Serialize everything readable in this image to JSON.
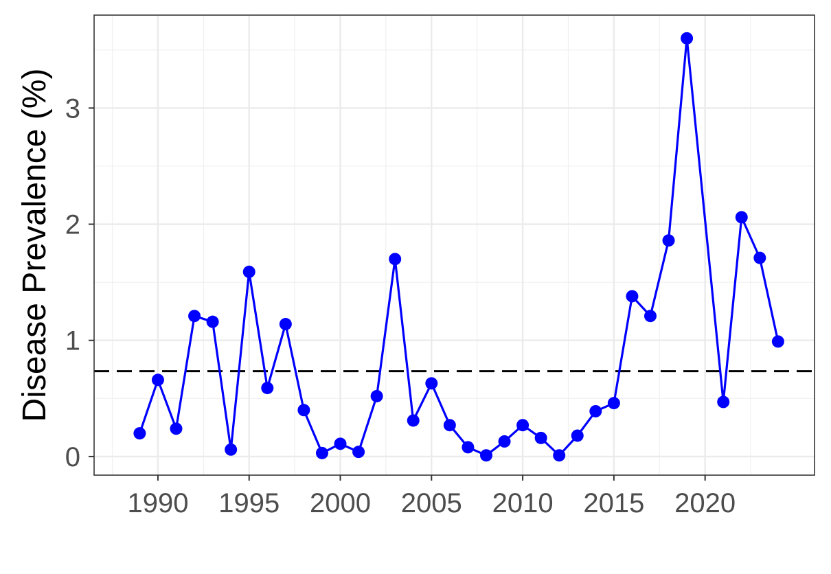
{
  "chart_data": {
    "type": "line",
    "title": "",
    "xlabel": "",
    "ylabel": "Disease Prevalence (%)",
    "xlim": [
      1986.5,
      2026.0
    ],
    "ylim": [
      -0.16,
      3.8
    ],
    "x_ticks": [
      1990,
      1995,
      2000,
      2005,
      2010,
      2015,
      2020
    ],
    "x_tick_labels": [
      "1990",
      "1995",
      "2000",
      "2005",
      "2010",
      "2015",
      "2020"
    ],
    "y_ticks": [
      0,
      1,
      2,
      3
    ],
    "y_tick_labels": [
      "0",
      "1",
      "2",
      "3"
    ],
    "grid": true,
    "legend": "none",
    "series": [
      {
        "color": "#0000ff",
        "x": [
          1989,
          1990,
          1991,
          1992,
          1993,
          1994,
          1995,
          1996,
          1997,
          1998,
          1999,
          2000,
          2001,
          2002,
          2003,
          2004,
          2005,
          2006,
          2007,
          2008,
          2009,
          2010,
          2011,
          2012,
          2013,
          2014,
          2015,
          2016,
          2017,
          2018,
          2019,
          2021,
          2022,
          2023,
          2024
        ],
        "y": [
          0.2,
          0.66,
          0.24,
          1.21,
          1.16,
          0.06,
          1.59,
          0.59,
          1.14,
          0.4,
          0.03,
          0.11,
          0.04,
          0.52,
          1.7,
          0.31,
          0.63,
          0.27,
          0.08,
          0.01,
          0.13,
          0.27,
          0.16,
          0.01,
          0.18,
          0.39,
          0.46,
          1.38,
          1.21,
          1.86,
          3.6,
          0.47,
          2.06,
          1.71,
          0.99
        ]
      }
    ],
    "reference_line": {
      "y": 0.735,
      "style": "dashed",
      "color": "#000000"
    }
  }
}
